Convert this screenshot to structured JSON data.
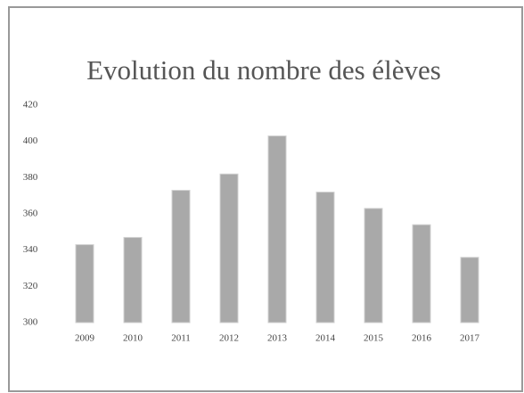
{
  "chart_data": {
    "type": "bar",
    "title": "Evolution du nombre des élèves",
    "categories": [
      "2009",
      "2010",
      "2011",
      "2012",
      "2013",
      "2014",
      "2015",
      "2016",
      "2017"
    ],
    "values": [
      343,
      347,
      373,
      382,
      403,
      372,
      363,
      354,
      336
    ],
    "color": "#a9a9a9",
    "ylim": [
      300,
      420
    ],
    "yticks": [
      300,
      320,
      340,
      360,
      380,
      400,
      420
    ],
    "grid": false
  }
}
